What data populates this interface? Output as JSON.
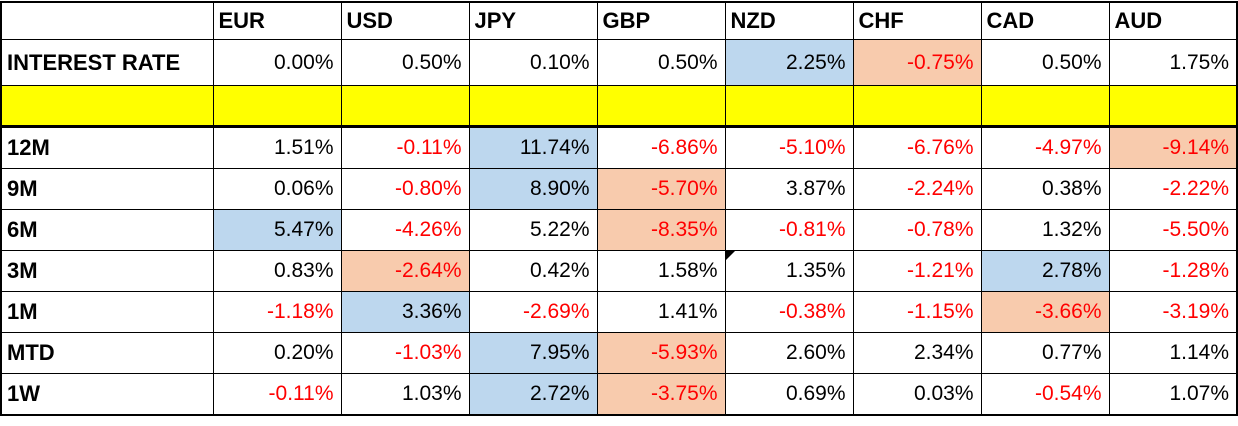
{
  "colors": {
    "highlight_best_blue": "#BDD7EE",
    "highlight_worst_orange": "#F8CBAD",
    "spacer_yellow": "#FFFF00",
    "negative_text_red": "#FF0000",
    "positive_text_black": "#000000",
    "grid_border": "#000000"
  },
  "table": {
    "currencies": [
      "EUR",
      "USD",
      "JPY",
      "GBP",
      "NZD",
      "CHF",
      "CAD",
      "AUD"
    ],
    "interest_rate": {
      "label": "INTEREST RATE",
      "values": [
        "0.00%",
        "0.50%",
        "0.10%",
        "0.50%",
        "2.25%",
        "-0.75%",
        "0.50%",
        "1.75%"
      ],
      "highlights": [
        null,
        null,
        null,
        null,
        "blue",
        "orange",
        null,
        null
      ]
    },
    "periods": [
      {
        "label": "12M",
        "values": [
          "1.51%",
          "-0.11%",
          "11.74%",
          "-6.86%",
          "-5.10%",
          "-6.76%",
          "-4.97%",
          "-9.14%"
        ],
        "highlights": [
          null,
          null,
          "blue",
          null,
          null,
          null,
          null,
          "orange"
        ]
      },
      {
        "label": "9M",
        "values": [
          "0.06%",
          "-0.80%",
          "8.90%",
          "-5.70%",
          "3.87%",
          "-2.24%",
          "0.38%",
          "-2.22%"
        ],
        "highlights": [
          null,
          null,
          "blue",
          "orange",
          null,
          null,
          null,
          null
        ]
      },
      {
        "label": "6M",
        "values": [
          "5.47%",
          "-4.26%",
          "5.22%",
          "-8.35%",
          "-0.81%",
          "-0.78%",
          "1.32%",
          "-5.50%"
        ],
        "highlights": [
          "blue",
          null,
          null,
          "orange",
          null,
          null,
          null,
          null
        ]
      },
      {
        "label": "3M",
        "values": [
          "0.83%",
          "-2.64%",
          "0.42%",
          "1.58%",
          "1.35%",
          "-1.21%",
          "2.78%",
          "-1.28%"
        ],
        "highlights": [
          null,
          "orange",
          null,
          null,
          null,
          null,
          "blue",
          null
        ]
      },
      {
        "label": "1M",
        "values": [
          "-1.18%",
          "3.36%",
          "-2.69%",
          "1.41%",
          "-0.38%",
          "-1.15%",
          "-3.66%",
          "-3.19%"
        ],
        "highlights": [
          null,
          "blue",
          null,
          null,
          null,
          null,
          "orange",
          null
        ]
      },
      {
        "label": "MTD",
        "values": [
          "0.20%",
          "-1.03%",
          "7.95%",
          "-5.93%",
          "2.60%",
          "2.34%",
          "0.77%",
          "1.14%"
        ],
        "highlights": [
          null,
          null,
          "blue",
          "orange",
          null,
          null,
          null,
          null
        ]
      },
      {
        "label": "1W",
        "values": [
          "-0.11%",
          "1.03%",
          "2.72%",
          "-3.75%",
          "0.69%",
          "0.03%",
          "-0.54%",
          "1.07%"
        ],
        "highlights": [
          null,
          null,
          "blue",
          "orange",
          null,
          null,
          null,
          null
        ]
      }
    ]
  }
}
